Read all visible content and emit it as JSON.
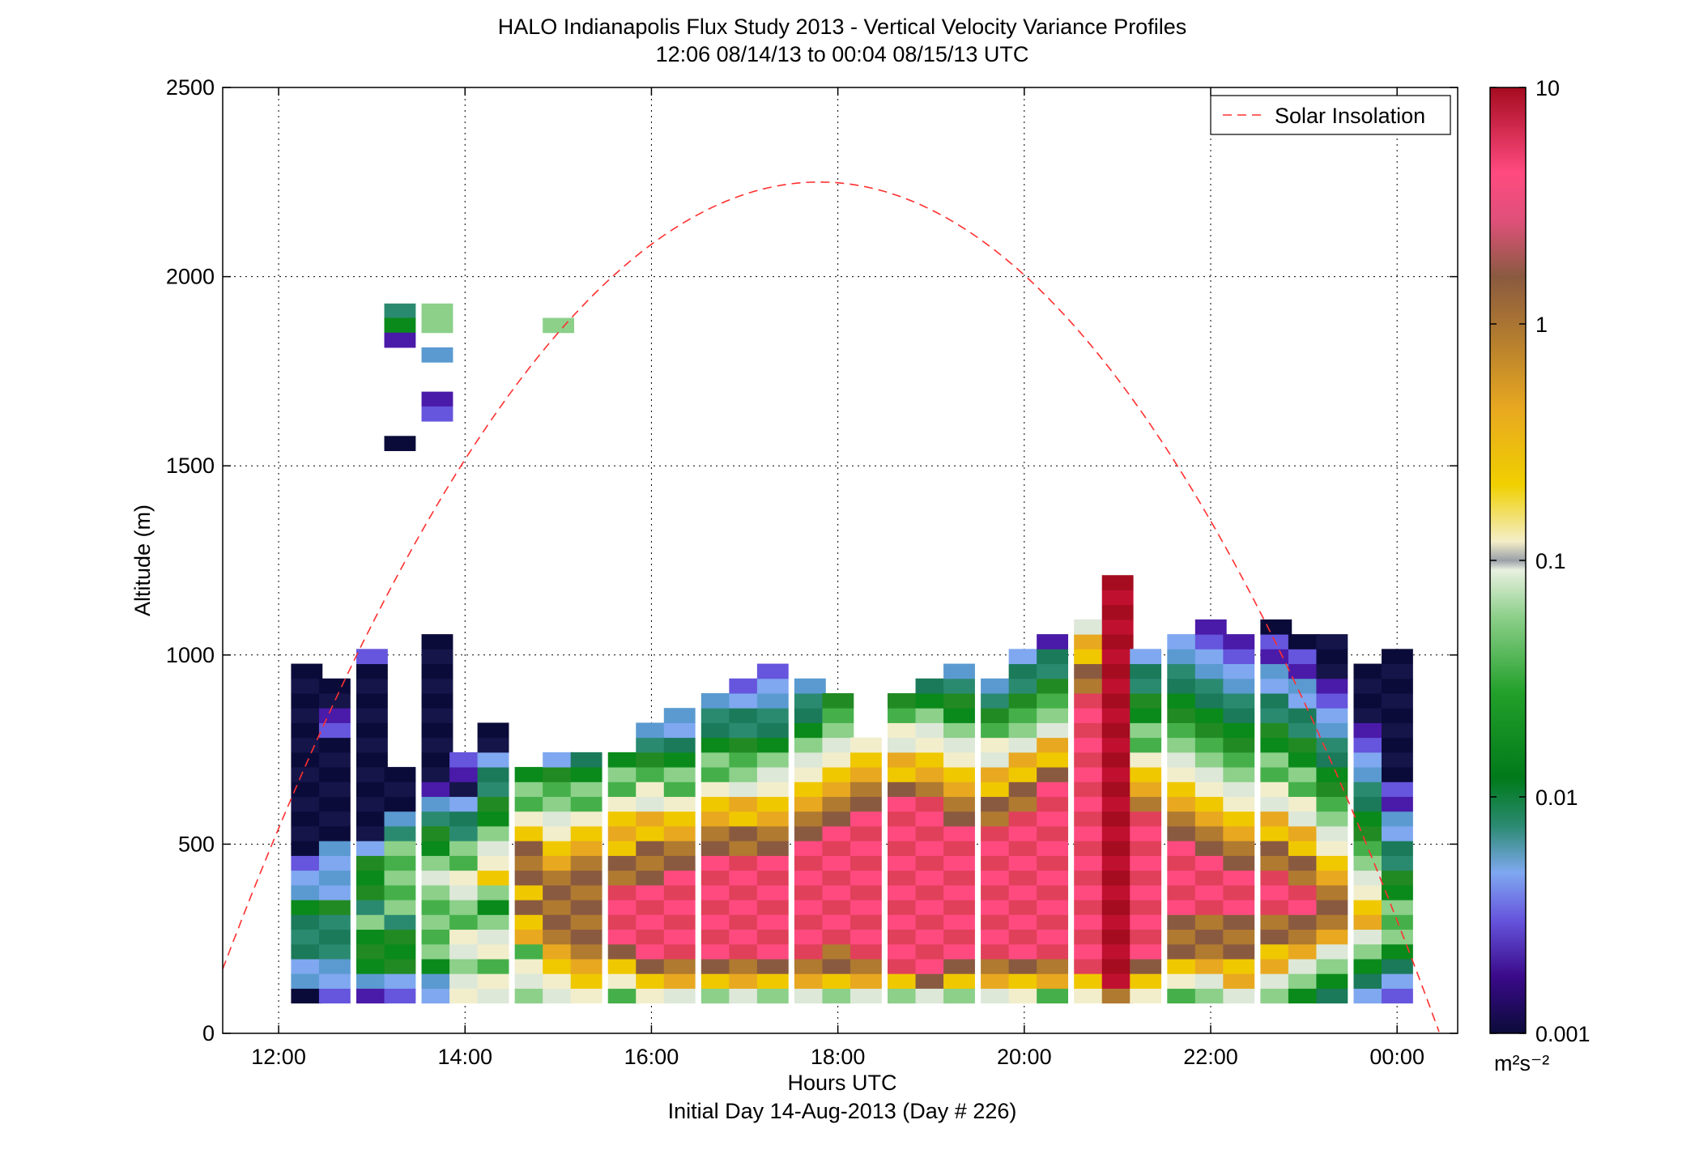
{
  "chart_data": {
    "type": "heatmap",
    "title": "HALO Indianapolis Flux Study 2013 - Vertical Velocity Variance Profiles",
    "subtitle": "12:06 08/14/13 to 00:04 08/15/13  UTC",
    "xlabel": "Hours UTC",
    "xlabel2": "Initial Day 14-Aug-2013 (Day # 226)",
    "ylabel": "Altitude (m)",
    "x_tick_labels": [
      "12:00",
      "14:00",
      "16:00",
      "18:00",
      "20:00",
      "22:00",
      "00:00"
    ],
    "y_tick_labels": [
      "0",
      "500",
      "1000",
      "1500",
      "2000",
      "2500"
    ],
    "xlim_hours": [
      11.4,
      24.65
    ],
    "ylim": [
      0,
      2500
    ],
    "grid": true,
    "legend": {
      "label": "Solar Insolation",
      "position": "top-right",
      "color": "#ff3030"
    },
    "colorbar": {
      "scale": "log",
      "range": [
        0.001,
        10
      ],
      "tick_labels": [
        "10",
        "1",
        "0.1",
        "0.01",
        "0.001"
      ],
      "units_label": "m²s⁻²"
    },
    "solar_insolation_peak": {
      "hour": 17.8,
      "altitude_equiv": 2250
    },
    "cell_size": {
      "hours": 0.3333,
      "meters": 39
    },
    "columns": [
      {
        "t": 12.3,
        "z0": 80,
        "c": "02233342210000000000000"
      },
      {
        "t": 12.6,
        "z0": 80,
        "c": "1223334222200000001100"
      },
      {
        "t": 13.0,
        "z0": 80,
        "c": "124445344420000000000001"
      },
      {
        "t": 13.3,
        "z0": 80,
        "c": "1244435555532000"
      },
      {
        "t": 13.7,
        "z0": 80,
        "c": "2245555565443210000000000"
      },
      {
        "t": 14.0,
        "z0": 80,
        "c": "66566556655332011"
      },
      {
        "t": 14.3,
        "z0": 80,
        "c": "6656654576654433200"
      },
      {
        "t": 14.7,
        "z0": 80,
        "c": "5665778788876554"
      },
      {
        "t": 15.0,
        "z0": 80,
        "c": "66778888877665542"
      },
      {
        "t": 15.3,
        "z0": 80,
        "c": "67788888887765543"
      },
      {
        "t": 15.7,
        "z0": 80,
        "c": "56789999887776554"
      },
      {
        "t": 16.0,
        "z0": 80,
        "c": "6789999988877665432"
      },
      {
        "t": 16.3,
        "z0": 80,
        "c": "67899999988776554322"
      },
      {
        "t": 16.7,
        "z0": 80,
        "c": "578999999988776554332"
      },
      {
        "t": 17.0,
        "z0": 80,
        "c": "6789999999887765543321"
      },
      {
        "t": 17.3,
        "z0": 80,
        "c": "57899999998877665433221"
      },
      {
        "t": 17.7,
        "z0": 80,
        "c": "6789999999988776654332"
      },
      {
        "t": 18.0,
        "z0": 80,
        "c": "578899999999887766554"
      },
      {
        "t": 18.3,
        "z0": 80,
        "c": "678999999999988776"
      },
      {
        "t": 18.7,
        "z0": 80,
        "c": "579999999999998776654"
      },
      {
        "t": 19.0,
        "z0": 80,
        "c": "6899999999999987766543"
      },
      {
        "t": 19.3,
        "z0": 80,
        "c": "57899999999988776654432"
      },
      {
        "t": 19.7,
        "z0": 80,
        "c": "6789999999998877665432"
      },
      {
        "t": 20.0,
        "z0": 80,
        "c": "678999999999988776554332"
      },
      {
        "t": 20.3,
        "z0": 80,
        "c": "5789999999999998776554331"
      },
      {
        "t": 20.7,
        "z0": 80,
        "c": "67999999999999999999988776"
      },
      {
        "t": 21.0,
        "z0": 80,
        "c": "89999999999999999999999999999"
      },
      {
        "t": 21.3,
        "z0": 80,
        "c": "678999999999987765544332"
      },
      {
        "t": 21.7,
        "z0": 80,
        "c": "5678889999988776655443322"
      },
      {
        "t": 22.0,
        "z0": 80,
        "c": "56788899998877665544332211"
      },
      {
        "t": 22.3,
        "z0": 80,
        "c": "6778889998877665544332211"
      },
      {
        "t": 22.7,
        "z0": 80,
        "c": "56778899988776655443322110"
      },
      {
        "t": 23.0,
        "z0": 80,
        "c": "4567889988776655443322110"
      },
      {
        "t": 23.3,
        "z0": 80,
        "c": "3456788877665544332211000"
      },
      {
        "t": 23.7,
        "z0": 80,
        "c": "23456776655443322110000"
      },
      {
        "t": 24.0,
        "z0": 80,
        "c": "123455544332211000000000"
      }
    ],
    "scattered_cells": [
      {
        "t": 13.3,
        "z": 1890,
        "v": 3
      },
      {
        "t": 13.7,
        "z": 1890,
        "v": 5
      },
      {
        "t": 13.3,
        "z": 1852,
        "v": 4
      },
      {
        "t": 13.7,
        "z": 1852,
        "v": 5
      },
      {
        "t": 13.3,
        "z": 1813,
        "v": 1
      },
      {
        "t": 13.7,
        "z": 1774,
        "v": 2
      },
      {
        "t": 13.7,
        "z": 1657,
        "v": 1
      },
      {
        "t": 13.7,
        "z": 1618,
        "v": 1
      },
      {
        "t": 13.3,
        "z": 1540,
        "v": 0
      },
      {
        "t": 15.0,
        "z": 1852,
        "v": 5
      }
    ]
  }
}
